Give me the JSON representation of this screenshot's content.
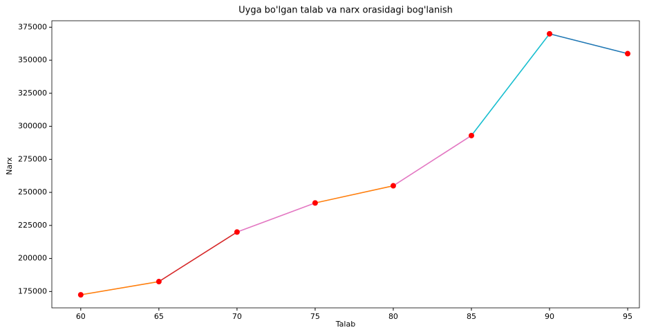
{
  "chart_data": {
    "type": "line",
    "title": "Uyga bo'lgan talab va narx orasidagi bog'lanish",
    "xlabel": "Talab",
    "ylabel": "Narx",
    "x": [
      60,
      65,
      70,
      75,
      80,
      85,
      90,
      95
    ],
    "values": [
      172500,
      182500,
      220000,
      242000,
      255000,
      293000,
      370000,
      355000
    ],
    "segment_colors": [
      "#ff7f0e",
      "#d62728",
      "#e377c2",
      "#ff7f0e",
      "#e377c2",
      "#17becf",
      "#1f77b4"
    ],
    "marker_color": "#ff0000",
    "xlim": [
      58.15,
      95.75
    ],
    "ylim": [
      162625,
      379875
    ],
    "xticks": [
      60,
      65,
      70,
      75,
      80,
      85,
      90,
      95
    ],
    "yticks": [
      175000,
      200000,
      225000,
      250000,
      275000,
      300000,
      325000,
      350000,
      375000
    ],
    "grid": false
  }
}
